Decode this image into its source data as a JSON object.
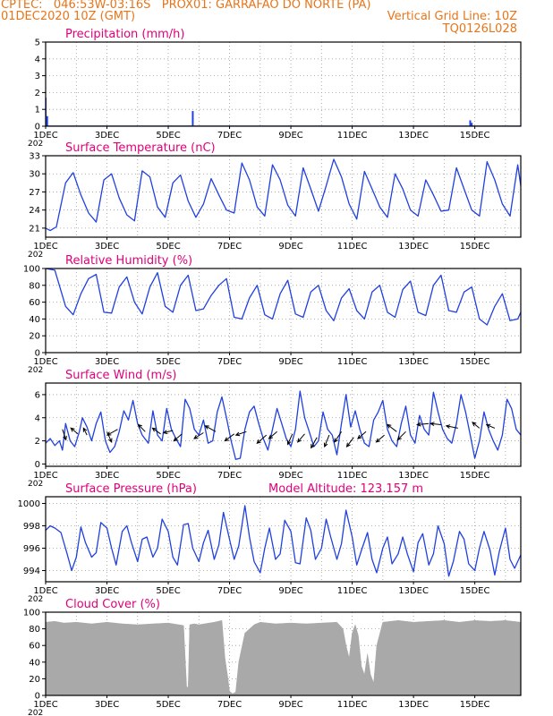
{
  "header": {
    "line1": "CPTEC:   046:53W-03:16S   PROX01: GARRAFAO DO NORTE (PA)",
    "date": "01DEC2020 10Z (GMT)",
    "grid_note": "Vertical Grid Line: 10Z",
    "code": "TQ0126L028"
  },
  "colors": {
    "header": "#e8751a",
    "title": "#e0007a",
    "series": "#2040e0",
    "cloud": "#a9a9a9",
    "axis": "#000000"
  },
  "x_axis": {
    "days_shown": 15.5,
    "tick_labels": [
      "1DEC",
      "3DEC",
      "5DEC",
      "7DEC",
      "9DEC",
      "11DEC",
      "13DEC",
      "15DEC"
    ],
    "tick_days": [
      0,
      2,
      4,
      6,
      8,
      10,
      12,
      14
    ],
    "year_fragment": "202"
  },
  "chart_data": [
    {
      "type": "bar",
      "title": "Precipitation (mm/h)",
      "ylim": [
        0,
        5
      ],
      "yticks": [
        0,
        1,
        2,
        3,
        4,
        5
      ],
      "x": [
        0.0,
        0.05,
        4.8,
        13.85,
        13.9
      ],
      "values": [
        1.7,
        0.6,
        0.9,
        0.35,
        0.2
      ]
    },
    {
      "type": "line",
      "title": "Surface Temperature (nC)",
      "ylim": [
        19.5,
        33
      ],
      "yticks": [
        21,
        24,
        27,
        30,
        33
      ],
      "x": [
        0.0,
        0.15,
        0.35,
        0.65,
        0.9,
        1.15,
        1.4,
        1.65,
        1.9,
        2.15,
        2.4,
        2.65,
        2.9,
        3.15,
        3.4,
        3.65,
        3.9,
        4.15,
        4.4,
        4.65,
        4.9,
        5.15,
        5.4,
        5.65,
        5.9,
        6.15,
        6.4,
        6.65,
        6.9,
        7.15,
        7.4,
        7.65,
        7.9,
        8.15,
        8.4,
        8.65,
        8.9,
        9.15,
        9.4,
        9.65,
        9.9,
        10.15,
        10.4,
        10.65,
        10.9,
        11.15,
        11.4,
        11.65,
        11.9,
        12.15,
        12.4,
        12.65,
        12.9,
        13.15,
        13.4,
        13.65,
        13.9,
        14.15,
        14.4,
        14.65,
        14.9,
        15.15,
        15.4,
        15.5
      ],
      "values": [
        21.0,
        20.6,
        21.2,
        28.5,
        30.2,
        26.5,
        23.5,
        22.0,
        29.0,
        30.0,
        26.0,
        23.2,
        22.2,
        30.5,
        29.5,
        24.5,
        22.8,
        28.5,
        29.8,
        25.5,
        22.8,
        25.0,
        29.2,
        26.5,
        24.0,
        23.5,
        31.8,
        29.0,
        24.5,
        23.0,
        31.5,
        29.0,
        24.8,
        23.0,
        31.0,
        27.5,
        23.8,
        28.0,
        32.4,
        29.5,
        25.0,
        22.5,
        30.4,
        27.5,
        24.5,
        22.8,
        30.0,
        27.5,
        24.0,
        23.0,
        29.0,
        26.5,
        23.8,
        24.0,
        31.0,
        27.5,
        24.0,
        23.0,
        32.0,
        29.0,
        25.0,
        23.0,
        31.5,
        28.0
      ]
    },
    {
      "type": "line",
      "title": "Relative Humidity (%)",
      "ylim": [
        0,
        100
      ],
      "yticks": [
        0,
        20,
        40,
        60,
        80,
        100
      ],
      "x": [
        0.0,
        0.3,
        0.65,
        0.9,
        1.15,
        1.4,
        1.65,
        1.9,
        2.15,
        2.4,
        2.65,
        2.9,
        3.15,
        3.4,
        3.65,
        3.9,
        4.15,
        4.4,
        4.65,
        4.9,
        5.15,
        5.4,
        5.65,
        5.9,
        6.15,
        6.4,
        6.65,
        6.9,
        7.15,
        7.4,
        7.65,
        7.9,
        8.15,
        8.4,
        8.65,
        8.9,
        9.15,
        9.4,
        9.65,
        9.9,
        10.15,
        10.4,
        10.65,
        10.9,
        11.15,
        11.4,
        11.65,
        11.9,
        12.15,
        12.4,
        12.65,
        12.9,
        13.15,
        13.4,
        13.65,
        13.9,
        14.15,
        14.4,
        14.65,
        14.9,
        15.15,
        15.4,
        15.5
      ],
      "values": [
        100,
        98,
        55,
        45,
        70,
        88,
        93,
        48,
        47,
        78,
        90,
        60,
        46,
        78,
        95,
        55,
        48,
        80,
        92,
        50,
        52,
        68,
        80,
        88,
        42,
        40,
        65,
        80,
        45,
        40,
        70,
        86,
        46,
        42,
        72,
        80,
        50,
        38,
        65,
        76,
        50,
        40,
        72,
        80,
        48,
        42,
        75,
        85,
        48,
        44,
        80,
        92,
        50,
        48,
        72,
        78,
        40,
        33,
        55,
        70,
        38,
        40,
        48
      ]
    },
    {
      "type": "line",
      "title": "Surface Wind (m/s)",
      "ylim": [
        -0.2,
        7
      ],
      "yticks": [
        0,
        2,
        4,
        6
      ],
      "x": [
        0.0,
        0.15,
        0.3,
        0.45,
        0.55,
        0.65,
        0.8,
        0.95,
        1.1,
        1.2,
        1.35,
        1.5,
        1.65,
        1.8,
        1.95,
        2.1,
        2.25,
        2.4,
        2.55,
        2.7,
        2.85,
        3.0,
        3.15,
        3.35,
        3.5,
        3.65,
        3.8,
        3.95,
        4.1,
        4.25,
        4.4,
        4.55,
        4.7,
        4.85,
        5.0,
        5.15,
        5.3,
        5.45,
        5.6,
        5.75,
        5.9,
        6.05,
        6.2,
        6.35,
        6.5,
        6.65,
        6.8,
        6.95,
        7.1,
        7.25,
        7.4,
        7.55,
        7.7,
        7.85,
        8.0,
        8.15,
        8.3,
        8.45,
        8.6,
        8.75,
        8.9,
        9.05,
        9.2,
        9.35,
        9.5,
        9.65,
        9.8,
        9.95,
        10.1,
        10.25,
        10.4,
        10.55,
        10.7,
        10.85,
        11.0,
        11.15,
        11.3,
        11.45,
        11.6,
        11.75,
        11.9,
        12.05,
        12.2,
        12.35,
        12.5,
        12.65,
        12.8,
        12.95,
        13.1,
        13.25,
        13.4,
        13.55,
        13.7,
        13.85,
        14.0,
        14.15,
        14.3,
        14.45,
        14.6,
        14.75,
        14.9,
        15.05,
        15.2,
        15.35,
        15.5
      ],
      "values": [
        1.8,
        2.2,
        1.6,
        2.0,
        1.2,
        3.5,
        2.0,
        1.5,
        2.8,
        4.0,
        3.2,
        2.0,
        3.5,
        4.5,
        2.0,
        1.0,
        1.5,
        2.8,
        4.6,
        3.8,
        5.5,
        3.5,
        2.5,
        1.8,
        4.6,
        2.5,
        2.0,
        4.8,
        3.0,
        2.2,
        1.5,
        5.6,
        4.8,
        3.0,
        2.5,
        3.8,
        1.8,
        2.0,
        4.5,
        5.8,
        4.0,
        2.0,
        0.4,
        0.5,
        3.0,
        4.5,
        5.0,
        3.5,
        2.2,
        1.2,
        3.0,
        4.8,
        3.5,
        2.2,
        1.5,
        3.0,
        6.3,
        4.0,
        2.8,
        1.5,
        2.0,
        4.5,
        3.0,
        2.5,
        0.8,
        3.5,
        6.0,
        3.2,
        4.6,
        3.0,
        1.8,
        1.5,
        3.8,
        4.5,
        5.5,
        3.0,
        2.0,
        1.5,
        3.5,
        5.0,
        2.5,
        1.8,
        4.2,
        3.0,
        2.5,
        6.2,
        4.5,
        3.0,
        2.2,
        1.8,
        3.5,
        6.0,
        4.5,
        2.5,
        0.5,
        2.0,
        4.5,
        3.0,
        2.0,
        1.2,
        2.5,
        5.6,
        4.8,
        3.0,
        2.5
      ],
      "arrows": [
        {
          "x": 0.55,
          "y": 3.0,
          "u": 0.3,
          "v": -0.9
        },
        {
          "x": 1.05,
          "y": 2.6,
          "u": -0.6,
          "v": 0.5
        },
        {
          "x": 1.35,
          "y": 2.5,
          "u": -0.3,
          "v": 0.6
        },
        {
          "x": 2.0,
          "y": 2.8,
          "u": 0.4,
          "v": -0.9
        },
        {
          "x": 2.35,
          "y": 3.0,
          "u": -0.9,
          "v": -0.5
        },
        {
          "x": 3.25,
          "y": 2.8,
          "u": -0.6,
          "v": 0.6
        },
        {
          "x": 3.75,
          "y": 2.6,
          "u": -0.7,
          "v": 0.5
        },
        {
          "x": 4.15,
          "y": 2.9,
          "u": -0.8,
          "v": -0.2
        },
        {
          "x": 4.45,
          "y": 2.6,
          "u": -0.7,
          "v": -0.6
        },
        {
          "x": 5.15,
          "y": 2.7,
          "u": -0.8,
          "v": -0.5
        },
        {
          "x": 5.55,
          "y": 2.8,
          "u": -0.9,
          "v": 0.5
        },
        {
          "x": 6.15,
          "y": 2.6,
          "u": -0.8,
          "v": -0.6
        },
        {
          "x": 6.55,
          "y": 2.8,
          "u": -0.9,
          "v": -0.3
        },
        {
          "x": 7.2,
          "y": 2.5,
          "u": -0.8,
          "v": -0.7
        },
        {
          "x": 7.55,
          "y": 2.8,
          "u": -0.7,
          "v": -0.6
        },
        {
          "x": 8.05,
          "y": 2.6,
          "u": -0.4,
          "v": -0.9
        },
        {
          "x": 8.45,
          "y": 2.6,
          "u": -0.6,
          "v": -0.7
        },
        {
          "x": 8.85,
          "y": 2.3,
          "u": -0.5,
          "v": -0.9
        },
        {
          "x": 9.25,
          "y": 2.5,
          "u": -0.4,
          "v": -1.0
        },
        {
          "x": 9.65,
          "y": 2.8,
          "u": -0.6,
          "v": -0.9
        },
        {
          "x": 10.05,
          "y": 2.3,
          "u": -0.6,
          "v": -0.8
        },
        {
          "x": 10.45,
          "y": 2.8,
          "u": -0.7,
          "v": -0.6
        },
        {
          "x": 11.05,
          "y": 2.5,
          "u": -0.7,
          "v": -0.6
        },
        {
          "x": 11.45,
          "y": 2.8,
          "u": -0.8,
          "v": 0.6
        },
        {
          "x": 11.75,
          "y": 2.8,
          "u": -0.7,
          "v": -0.7
        },
        {
          "x": 12.5,
          "y": 3.5,
          "u": -1.0,
          "v": -0.1
        },
        {
          "x": 12.9,
          "y": 3.4,
          "u": -0.9,
          "v": 0.1
        },
        {
          "x": 13.45,
          "y": 3.1,
          "u": -1.0,
          "v": 0.2
        },
        {
          "x": 14.15,
          "y": 3.1,
          "u": -0.6,
          "v": 0.5
        },
        {
          "x": 14.65,
          "y": 3.1,
          "u": -0.7,
          "v": 0.3
        }
      ]
    },
    {
      "type": "line",
      "title": "Surface Pressure (hPa)",
      "subtitle": "Model Altitude: 123.157  m",
      "ylim": [
        993,
        1000.6
      ],
      "yticks": [
        994,
        996,
        998,
        1000
      ],
      "x": [
        0.0,
        0.15,
        0.3,
        0.5,
        0.7,
        0.85,
        1.0,
        1.15,
        1.3,
        1.5,
        1.65,
        1.8,
        2.0,
        2.15,
        2.3,
        2.5,
        2.65,
        2.8,
        3.0,
        3.15,
        3.3,
        3.5,
        3.65,
        3.8,
        4.0,
        4.15,
        4.3,
        4.5,
        4.65,
        4.8,
        5.0,
        5.15,
        5.3,
        5.5,
        5.65,
        5.8,
        6.0,
        6.15,
        6.3,
        6.5,
        6.65,
        6.8,
        7.0,
        7.15,
        7.3,
        7.5,
        7.65,
        7.8,
        8.0,
        8.15,
        8.3,
        8.5,
        8.65,
        8.8,
        9.0,
        9.15,
        9.3,
        9.5,
        9.65,
        9.8,
        10.0,
        10.15,
        10.3,
        10.5,
        10.65,
        10.8,
        11.0,
        11.15,
        11.3,
        11.5,
        11.65,
        11.8,
        12.0,
        12.15,
        12.3,
        12.5,
        12.65,
        12.8,
        13.0,
        13.15,
        13.3,
        13.5,
        13.65,
        13.8,
        14.0,
        14.15,
        14.3,
        14.5,
        14.65,
        14.8,
        15.0,
        15.15,
        15.3,
        15.5
      ],
      "values": [
        997.6,
        998.0,
        997.8,
        997.4,
        995.5,
        994.0,
        995.2,
        997.9,
        996.5,
        995.2,
        995.6,
        998.3,
        997.8,
        996.0,
        994.5,
        997.5,
        998.0,
        996.5,
        994.8,
        996.8,
        997.0,
        995.2,
        996.0,
        998.6,
        997.5,
        995.2,
        994.5,
        998.1,
        998.2,
        996.0,
        994.8,
        996.5,
        997.6,
        995.0,
        996.3,
        999.2,
        996.8,
        995.0,
        996.2,
        999.8,
        997.0,
        994.8,
        993.8,
        996.0,
        997.8,
        995.0,
        995.5,
        998.5,
        997.5,
        994.7,
        994.6,
        998.7,
        997.6,
        995.0,
        996.0,
        998.6,
        997.0,
        995.0,
        996.4,
        999.4,
        997.0,
        994.5,
        995.8,
        997.4,
        995.0,
        993.8,
        996.0,
        997.0,
        994.6,
        995.5,
        997.0,
        995.5,
        993.9,
        996.5,
        997.3,
        994.5,
        995.5,
        998.0,
        996.4,
        993.5,
        994.8,
        997.5,
        996.8,
        994.6,
        994.0,
        996.0,
        997.5,
        995.8,
        993.6,
        995.7,
        997.8,
        995.0,
        994.2,
        995.4
      ]
    },
    {
      "type": "area",
      "title": "Cloud Cover (%)",
      "ylim": [
        0,
        100
      ],
      "yticks": [
        0,
        20,
        40,
        60,
        80,
        100
      ],
      "x": [
        0.0,
        0.3,
        0.6,
        1.0,
        1.5,
        2.0,
        2.5,
        3.0,
        3.5,
        4.0,
        4.5,
        4.6,
        4.65,
        4.7,
        4.85,
        5.0,
        5.5,
        5.75,
        5.85,
        5.95,
        6.0,
        6.1,
        6.2,
        6.3,
        6.5,
        6.8,
        7.0,
        7.5,
        8.0,
        8.5,
        9.0,
        9.5,
        9.7,
        9.8,
        9.9,
        10.0,
        10.1,
        10.2,
        10.3,
        10.4,
        10.5,
        10.6,
        10.7,
        10.8,
        11.0,
        11.5,
        12.0,
        12.5,
        13.0,
        13.5,
        14.0,
        14.5,
        15.0,
        15.5
      ],
      "values": [
        88,
        89,
        87,
        88,
        86,
        88,
        86,
        85,
        86,
        87,
        84,
        10,
        10,
        85,
        86,
        85,
        88,
        90,
        45,
        20,
        5,
        2,
        4,
        40,
        75,
        85,
        88,
        86,
        87,
        86,
        87,
        88,
        80,
        60,
        45,
        75,
        85,
        72,
        35,
        25,
        50,
        25,
        15,
        60,
        88,
        90,
        88,
        89,
        90,
        88,
        90,
        89,
        90,
        88
      ]
    }
  ]
}
